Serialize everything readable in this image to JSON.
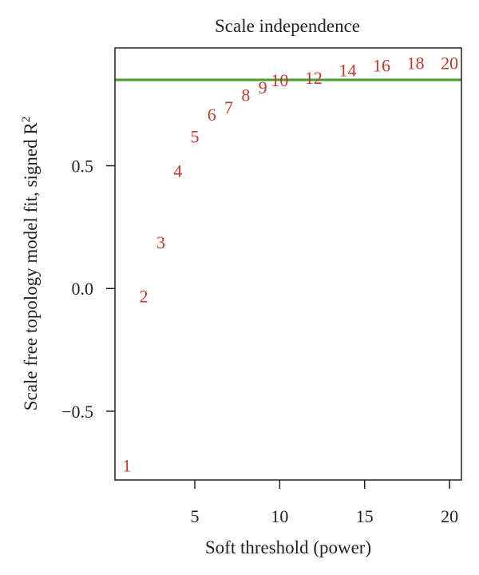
{
  "chart_data": {
    "type": "scatter",
    "title": "Scale independence",
    "xlabel": "Soft threshold (power)",
    "ylabel": "Scale free topology model fit, signed R",
    "ylabel_superscript": "2",
    "xlim": [
      0.3,
      20.7
    ],
    "ylim": [
      -0.78,
      0.98
    ],
    "x_ticks": [
      5,
      10,
      15,
      20
    ],
    "x_tick_labels": [
      "5",
      "10",
      "15",
      "20"
    ],
    "y_ticks": [
      -0.5,
      0.0,
      0.5
    ],
    "y_tick_labels": [
      "−0.5",
      "0.0",
      "0.5"
    ],
    "grid": false,
    "points": [
      {
        "x": 1,
        "y": -0.72,
        "label": "1"
      },
      {
        "x": 2,
        "y": -0.03,
        "label": "2"
      },
      {
        "x": 3,
        "y": 0.19,
        "label": "3"
      },
      {
        "x": 4,
        "y": 0.48,
        "label": "4"
      },
      {
        "x": 5,
        "y": 0.62,
        "label": "5"
      },
      {
        "x": 6,
        "y": 0.71,
        "label": "6"
      },
      {
        "x": 7,
        "y": 0.74,
        "label": "7"
      },
      {
        "x": 8,
        "y": 0.79,
        "label": "8"
      },
      {
        "x": 9,
        "y": 0.82,
        "label": "9"
      },
      {
        "x": 10,
        "y": 0.85,
        "label": "10"
      },
      {
        "x": 12,
        "y": 0.86,
        "label": "12"
      },
      {
        "x": 14,
        "y": 0.89,
        "label": "14"
      },
      {
        "x": 16,
        "y": 0.91,
        "label": "16"
      },
      {
        "x": 18,
        "y": 0.92,
        "label": "18"
      },
      {
        "x": 20,
        "y": 0.92,
        "label": "20"
      }
    ],
    "reference_line": {
      "y": 0.85,
      "color": "#4a9a2e"
    },
    "point_color": "#c0392b"
  }
}
